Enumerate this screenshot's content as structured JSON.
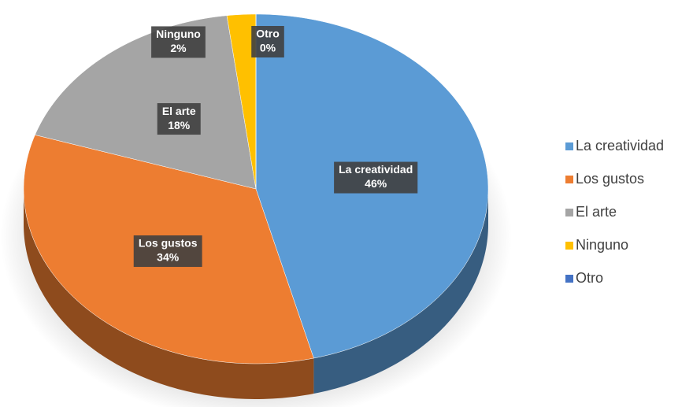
{
  "chart_data": {
    "type": "pie",
    "categories": [
      "La creatividad",
      "Los gustos",
      "El arte",
      "Ninguno",
      "Otro"
    ],
    "values": [
      46,
      34,
      18,
      2,
      0
    ],
    "value_labels": [
      "46%",
      "34%",
      "18%",
      "2%",
      "0%"
    ],
    "colors": [
      "#5b9bd5",
      "#ed7d31",
      "#a5a5a5",
      "#ffc000",
      "#4472c4"
    ],
    "legend": "right"
  }
}
